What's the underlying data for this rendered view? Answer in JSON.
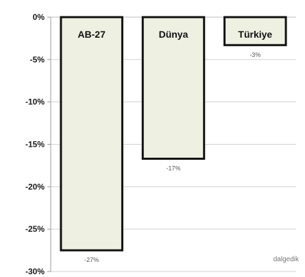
{
  "chart_data": {
    "type": "bar",
    "categories": [
      "AB-27",
      "Dünya",
      "Türkiye"
    ],
    "values": [
      -27.5,
      -16.7,
      -3.3
    ],
    "data_labels": [
      "-27%",
      "-17%",
      "-3%"
    ],
    "ylim": [
      -30,
      0
    ],
    "yticks": [
      0,
      -5,
      -10,
      -15,
      -20,
      -25,
      -30
    ],
    "ytick_labels": [
      "0%",
      "-5%",
      "-10%",
      "-15%",
      "-20%",
      "-25%",
      "-30%"
    ],
    "grid": true,
    "colors": {
      "bar_fill": "#eef0e2",
      "bar_stroke": "#111111",
      "grid": "#d0d0d0",
      "axis": "#9a9a9a"
    }
  },
  "watermark": "dalgedik"
}
